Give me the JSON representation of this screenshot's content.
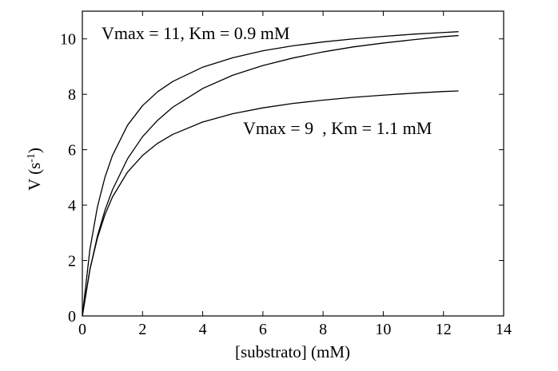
{
  "chart_data": {
    "type": "line",
    "title": "",
    "xlabel": "[substrato] (mM)",
    "ylabel_main": "V (s",
    "ylabel_sup": "-1",
    "ylabel_close": ")",
    "xlim": [
      0,
      14
    ],
    "ylim": [
      0,
      11
    ],
    "xticks": [
      "0",
      "2",
      "4",
      "6",
      "8",
      "10",
      "12",
      "14"
    ],
    "yticks": [
      "0",
      "2",
      "4",
      "6",
      "8",
      "10"
    ],
    "grid": false,
    "legend": "none",
    "x": [
      0,
      0.25,
      0.5,
      0.75,
      1,
      1.5,
      2,
      2.5,
      3,
      4,
      5,
      6,
      7,
      8,
      9,
      10,
      11,
      12,
      12.5
    ],
    "series": [
      {
        "values": [
          0,
          2.39,
          3.93,
          5.0,
          5.79,
          6.88,
          7.59,
          8.09,
          8.46,
          8.98,
          9.32,
          9.57,
          9.75,
          9.89,
          10.0,
          10.09,
          10.17,
          10.23,
          10.26
        ]
      },
      {
        "values": [
          0,
          1.66,
          2.88,
          3.81,
          4.55,
          5.67,
          6.47,
          7.06,
          7.53,
          8.21,
          8.69,
          9.04,
          9.31,
          9.53,
          9.71,
          9.85,
          9.97,
          10.08,
          10.12
        ]
      },
      {
        "values": [
          0,
          1.67,
          2.81,
          3.65,
          4.29,
          5.19,
          5.79,
          6.23,
          6.55,
          7.0,
          7.3,
          7.51,
          7.67,
          7.79,
          7.89,
          7.97,
          8.04,
          8.1,
          8.12
        ]
      }
    ],
    "annotations": [
      {
        "text": "Vmax = 11, Km = 0.9 mM"
      },
      {
        "text": "Vmax = 9  , Km = 1.1 mM"
      }
    ]
  }
}
